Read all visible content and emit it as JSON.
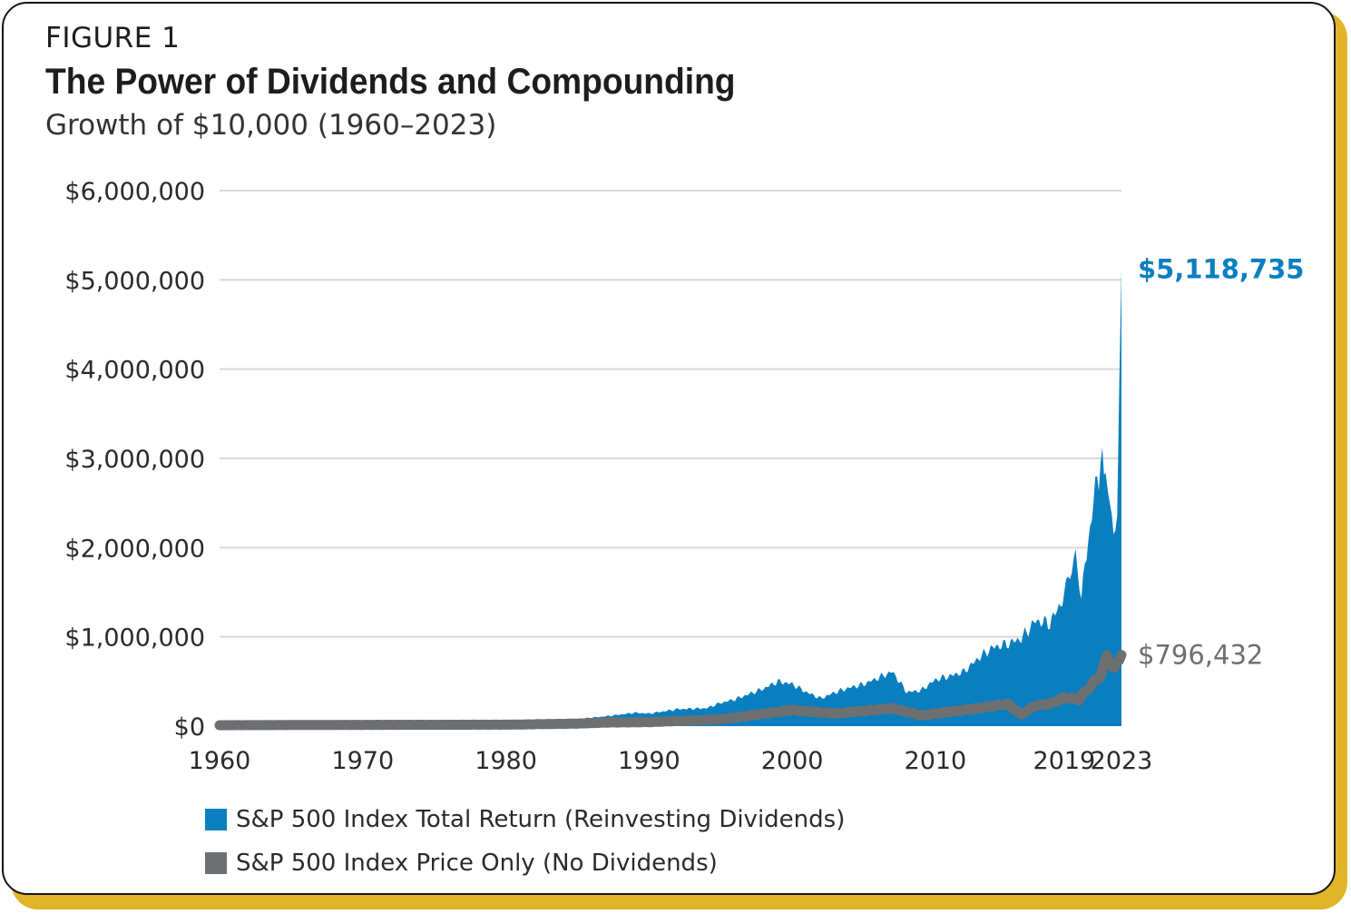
{
  "figure_label": "FIGURE 1",
  "title": "The Power of Dividends and Compounding",
  "subtitle": "Growth of $10,000 (1960–2023)",
  "colors": {
    "total_return": "#0a7fc0",
    "price_only": "#6e6f71",
    "grid": "#d9d9d9",
    "frame_accent": "#e1b52a"
  },
  "chart_data": {
    "type": "area",
    "title": "The Power of Dividends and Compounding",
    "subtitle": "Growth of $10,000 (1960–2023)",
    "xlabel": "",
    "ylabel": "",
    "x_ticks": [
      "1960",
      "1970",
      "1980",
      "1990",
      "2000",
      "2010",
      "2019",
      "2023"
    ],
    "y_ticks": [
      "$0",
      "$1,000,000",
      "$2,000,000",
      "$3,000,000",
      "$4,000,000",
      "$5,000,000",
      "$6,000,000"
    ],
    "ylim": [
      0,
      6000000
    ],
    "xlim": [
      1960,
      2023
    ],
    "grid": true,
    "legend": "bottom-left",
    "series": [
      {
        "name": "S&P 500 Index Total Return (Reinvesting Dividends)",
        "style": "area",
        "end_label": "$5,118,735",
        "points": [
          [
            1960,
            10000
          ],
          [
            1965,
            20000
          ],
          [
            1970,
            25000
          ],
          [
            1975,
            30000
          ],
          [
            1980,
            45000
          ],
          [
            1985,
            80000
          ],
          [
            1987,
            110000
          ],
          [
            1989,
            150000
          ],
          [
            1990,
            140000
          ],
          [
            1992,
            190000
          ],
          [
            1994,
            200000
          ],
          [
            1995,
            260000
          ],
          [
            1996,
            300000
          ],
          [
            1997,
            360000
          ],
          [
            1998,
            420000
          ],
          [
            1999,
            500000
          ],
          [
            2000,
            470000
          ],
          [
            2001,
            380000
          ],
          [
            2002,
            310000
          ],
          [
            2003,
            380000
          ],
          [
            2004,
            430000
          ],
          [
            2005,
            470000
          ],
          [
            2006,
            540000
          ],
          [
            2007,
            610000
          ],
          [
            2008,
            380000
          ],
          [
            2009,
            400000
          ],
          [
            2010,
            520000
          ],
          [
            2011,
            560000
          ],
          [
            2012,
            610000
          ],
          [
            2013,
            760000
          ],
          [
            2014,
            880000
          ],
          [
            2015,
            920000
          ],
          [
            2016,
            980000
          ],
          [
            2017,
            1180000
          ],
          [
            2018,
            1150000
          ],
          [
            2019,
            1450000
          ],
          [
            2019.8,
            1900000
          ],
          [
            2020.2,
            1500000
          ],
          [
            2020.8,
            2200000
          ],
          [
            2021.3,
            2800000
          ],
          [
            2021.9,
            3000000
          ],
          [
            2022.2,
            2400000
          ],
          [
            2022.7,
            2200000
          ],
          [
            2023,
            5118735
          ]
        ]
      },
      {
        "name": "S&P 500 Index Price Only (No Dividends)",
        "style": "line",
        "end_label": "$796,432",
        "points": [
          [
            1960,
            10000
          ],
          [
            1970,
            14000
          ],
          [
            1980,
            16000
          ],
          [
            1985,
            28000
          ],
          [
            1987,
            40000
          ],
          [
            1990,
            45000
          ],
          [
            1995,
            75000
          ],
          [
            2000,
            180000
          ],
          [
            2003,
            140000
          ],
          [
            2007,
            200000
          ],
          [
            2009,
            120000
          ],
          [
            2013,
            200000
          ],
          [
            2015,
            250000
          ],
          [
            2016,
            130000
          ],
          [
            2017,
            230000
          ],
          [
            2018,
            250000
          ],
          [
            2019,
            320000
          ],
          [
            2020,
            300000
          ],
          [
            2021,
            480000
          ],
          [
            2021.5,
            560000
          ],
          [
            2022,
            780000
          ],
          [
            2022.5,
            640000
          ],
          [
            2023,
            796432
          ]
        ]
      }
    ]
  }
}
